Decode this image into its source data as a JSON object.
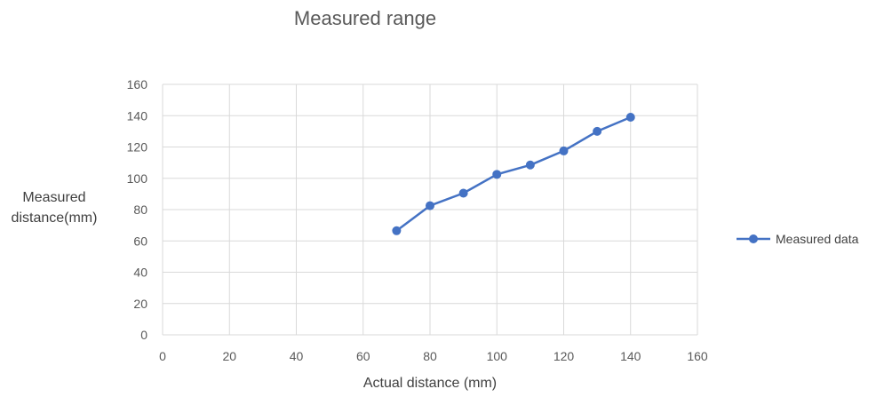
{
  "chart_data": {
    "type": "scatter",
    "title": "Measured range",
    "xlabel": "Actual distance (mm)",
    "ylabel": [
      "Measured",
      "distance(mm)"
    ],
    "xlim": [
      0,
      160
    ],
    "ylim": [
      0,
      160
    ],
    "xticks": [
      "0",
      "20",
      "40",
      "60",
      "80",
      "100",
      "120",
      "140",
      "160"
    ],
    "yticks": [
      "0",
      "20",
      "40",
      "60",
      "80",
      "100",
      "120",
      "140",
      "160"
    ],
    "grid": true,
    "legend_position": "right",
    "series": [
      {
        "name": "Measured data",
        "color": "#4472c4",
        "marker": "circle",
        "line": true,
        "x": [
          70,
          80,
          90,
          100,
          110,
          120,
          130,
          140
        ],
        "y": [
          66.5,
          82.5,
          90.5,
          102.5,
          108.5,
          117.5,
          130,
          139
        ]
      }
    ]
  }
}
